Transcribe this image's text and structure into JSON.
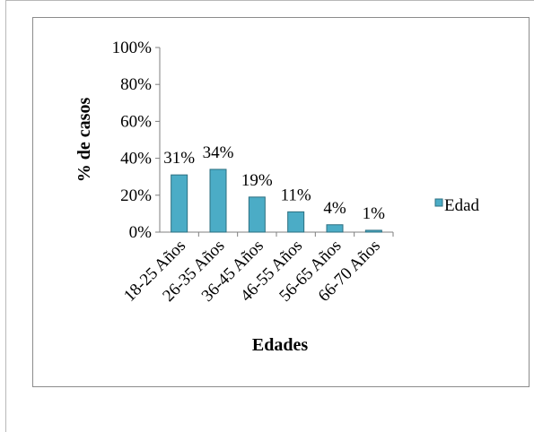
{
  "chart_data": {
    "type": "bar",
    "categories": [
      "18-25 Años",
      "26-35 Años",
      "36-45 Años",
      "46-55 Años",
      "56-65 Años",
      "66-70 Años"
    ],
    "series": [
      {
        "name": "Edad",
        "values": [
          31,
          34,
          19,
          11,
          4,
          1
        ],
        "data_labels": [
          "31%",
          "34%",
          "19%",
          "11%",
          "4%",
          "1%"
        ]
      }
    ],
    "xlabel": "Edades",
    "ylabel": "%  de casos",
    "ylim": [
      0,
      100
    ],
    "y_ticks": [
      "0%",
      "20%",
      "40%",
      "60%",
      "80%",
      "100%"
    ],
    "legend_position": "right",
    "grid": false
  },
  "colors": {
    "bar_fill": "#4bacc6",
    "bar_stroke": "#2c6f80",
    "axis": "#7f7f7f"
  }
}
